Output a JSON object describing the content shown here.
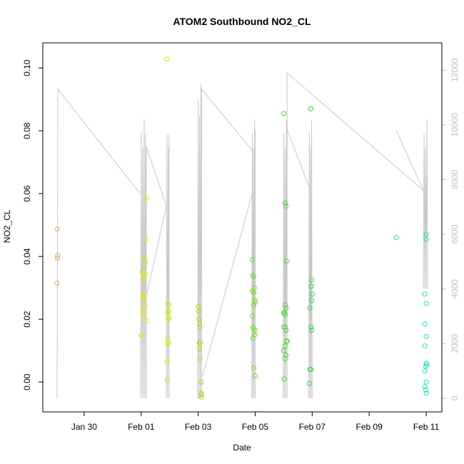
{
  "chart_data": {
    "type": "scatter",
    "title": "ATOM2 Southbound NO2_CL",
    "xlabel": "Date",
    "ylabel": "NO2_CL",
    "x_unit": "days",
    "x_ticks": [
      {
        "value": 30,
        "label": "Jan 30"
      },
      {
        "value": 32,
        "label": "Feb 01"
      },
      {
        "value": 34,
        "label": "Feb 03"
      },
      {
        "value": 36,
        "label": "Feb 05"
      },
      {
        "value": 38,
        "label": "Feb 07"
      },
      {
        "value": 40,
        "label": "Feb 09"
      },
      {
        "value": 42,
        "label": "Feb 11"
      }
    ],
    "xlim": [
      28.55,
      42.55
    ],
    "ylim": [
      -0.0095,
      0.108
    ],
    "y_ticks": [
      {
        "value": 0.0,
        "label": "0.00"
      },
      {
        "value": 0.02,
        "label": "0.02"
      },
      {
        "value": 0.04,
        "label": "0.04"
      },
      {
        "value": 0.06,
        "label": "0.06"
      },
      {
        "value": 0.08,
        "label": "0.08"
      },
      {
        "value": 0.1,
        "label": "0.10"
      }
    ],
    "y2lim": [
      -500,
      13000
    ],
    "y2_ticks": [
      {
        "value": 0,
        "label": "0"
      },
      {
        "value": 2000,
        "label": "2000"
      },
      {
        "value": 4000,
        "label": "4000"
      },
      {
        "value": 6000,
        "label": "6000"
      },
      {
        "value": 8000,
        "label": "8000"
      },
      {
        "value": 10000,
        "label": "10000"
      },
      {
        "value": 12000,
        "label": "12000"
      }
    ],
    "grid": false,
    "colors": {
      "day1": "#f5a050",
      "day2": "#e8e800",
      "day3": "#c8f000",
      "day4": "#a8e000",
      "day5": "#70e020",
      "day6": "#40e020",
      "day7": "#20e040",
      "day8": "#20e0a0",
      "day9": "#20e0c0",
      "line": "#c8c8c8"
    },
    "series": [
      {
        "color_key": "day1",
        "points": [
          [
            29.05,
            0.0487
          ],
          [
            29.06,
            0.0395
          ],
          [
            29.07,
            0.0403
          ],
          [
            29.05,
            0.0315
          ]
        ]
      },
      {
        "color_key": "day2",
        "points": [
          [
            32.0,
            0.0148
          ],
          [
            32.02,
            0.015
          ],
          [
            32.05,
            0.0225
          ],
          [
            32.05,
            0.0215
          ],
          [
            32.08,
            0.0265
          ],
          [
            32.1,
            0.0275
          ],
          [
            32.06,
            0.033
          ],
          [
            32.08,
            0.0345
          ],
          [
            32.12,
            0.0345
          ],
          [
            32.14,
            0.038
          ],
          [
            32.1,
            0.039
          ],
          [
            32.16,
            0.0455
          ],
          [
            32.18,
            0.0585
          ],
          [
            32.2,
            0.0195
          ],
          [
            32.02,
            0.035
          ],
          [
            32.05,
            0.0275
          ],
          [
            32.12,
            0.0245
          ]
        ]
      },
      {
        "color_key": "day3",
        "points": [
          [
            32.9,
            0.1028
          ],
          [
            32.92,
            0.0008
          ],
          [
            32.9,
            0.0065
          ],
          [
            32.93,
            0.012
          ],
          [
            32.95,
            0.0125
          ],
          [
            32.93,
            0.014
          ],
          [
            32.96,
            0.0225
          ],
          [
            32.98,
            0.0245
          ],
          [
            32.98,
            0.0205
          ],
          [
            32.93,
            0.022
          ],
          [
            32.95,
            0.02
          ],
          [
            32.93,
            0.0248
          ]
        ]
      },
      {
        "color_key": "day4",
        "points": [
          [
            34.0,
            0.024
          ],
          [
            34.02,
            0.0225
          ],
          [
            34.03,
            0.02
          ],
          [
            34.05,
            0.0185
          ],
          [
            34.06,
            0.0175
          ],
          [
            34.04,
            0.0125
          ],
          [
            34.07,
            0.0125
          ],
          [
            34.05,
            0.0105
          ],
          [
            34.06,
            0.0075
          ],
          [
            34.1,
            0.0
          ],
          [
            34.1,
            -0.0035
          ],
          [
            34.12,
            -0.004
          ],
          [
            34.12,
            -0.0048
          ]
        ]
      },
      {
        "color_key": "day5",
        "points": [
          [
            35.9,
            0.039
          ],
          [
            35.92,
            0.034
          ],
          [
            35.95,
            0.0335
          ],
          [
            35.97,
            0.03
          ],
          [
            35.95,
            0.0285
          ],
          [
            35.98,
            0.026
          ],
          [
            35.9,
            0.029
          ],
          [
            36.0,
            0.0255
          ],
          [
            35.95,
            0.0245
          ],
          [
            35.9,
            0.021
          ],
          [
            35.92,
            0.0175
          ],
          [
            35.95,
            0.017
          ],
          [
            36.0,
            0.0165
          ],
          [
            35.98,
            0.015
          ],
          [
            35.92,
            0.014
          ],
          [
            35.95,
            0.0045
          ],
          [
            36.0,
            0.002
          ]
        ]
      },
      {
        "color_key": "day6",
        "points": [
          [
            37.0,
            0.0855
          ],
          [
            37.05,
            0.057
          ],
          [
            37.08,
            0.056
          ],
          [
            37.1,
            0.0385
          ],
          [
            37.05,
            0.0245
          ],
          [
            37.08,
            0.0235
          ],
          [
            37.0,
            0.022
          ],
          [
            37.02,
            0.022
          ],
          [
            37.05,
            0.0215
          ],
          [
            37.0,
            0.0175
          ],
          [
            37.05,
            0.0175
          ],
          [
            37.08,
            0.0165
          ],
          [
            37.1,
            0.013
          ],
          [
            37.12,
            0.013
          ],
          [
            37.05,
            0.0115
          ],
          [
            37.0,
            0.01
          ],
          [
            37.08,
            0.0085
          ],
          [
            37.05,
            0.0075
          ],
          [
            37.02,
            0.001
          ]
        ]
      },
      {
        "color_key": "day7",
        "points": [
          [
            37.95,
            0.087
          ],
          [
            37.98,
            0.0325
          ],
          [
            37.96,
            0.0305
          ],
          [
            38.0,
            0.028
          ],
          [
            37.98,
            0.026
          ],
          [
            37.92,
            0.0235
          ],
          [
            37.96,
            0.0175
          ],
          [
            37.98,
            0.0165
          ],
          [
            37.95,
            0.004
          ],
          [
            37.92,
            0.004
          ],
          [
            37.9,
            -0.0005
          ]
        ]
      },
      {
        "color_key": "day8",
        "points": [
          [
            40.95,
            0.046
          ]
        ]
      },
      {
        "color_key": "day9",
        "points": [
          [
            42.0,
            0.047
          ],
          [
            42.0,
            0.0455
          ],
          [
            41.95,
            0.028
          ],
          [
            42.0,
            0.025
          ],
          [
            41.95,
            0.0185
          ],
          [
            42.0,
            0.0145
          ],
          [
            41.95,
            0.0115
          ],
          [
            42.0,
            0.006
          ],
          [
            42.02,
            0.0055
          ],
          [
            41.98,
            0.005
          ],
          [
            41.95,
            0.0035
          ],
          [
            42.0,
            0.0
          ],
          [
            41.95,
            -0.0015
          ],
          [
            41.98,
            -0.0025
          ],
          [
            42.0,
            -0.0035
          ]
        ]
      }
    ]
  }
}
